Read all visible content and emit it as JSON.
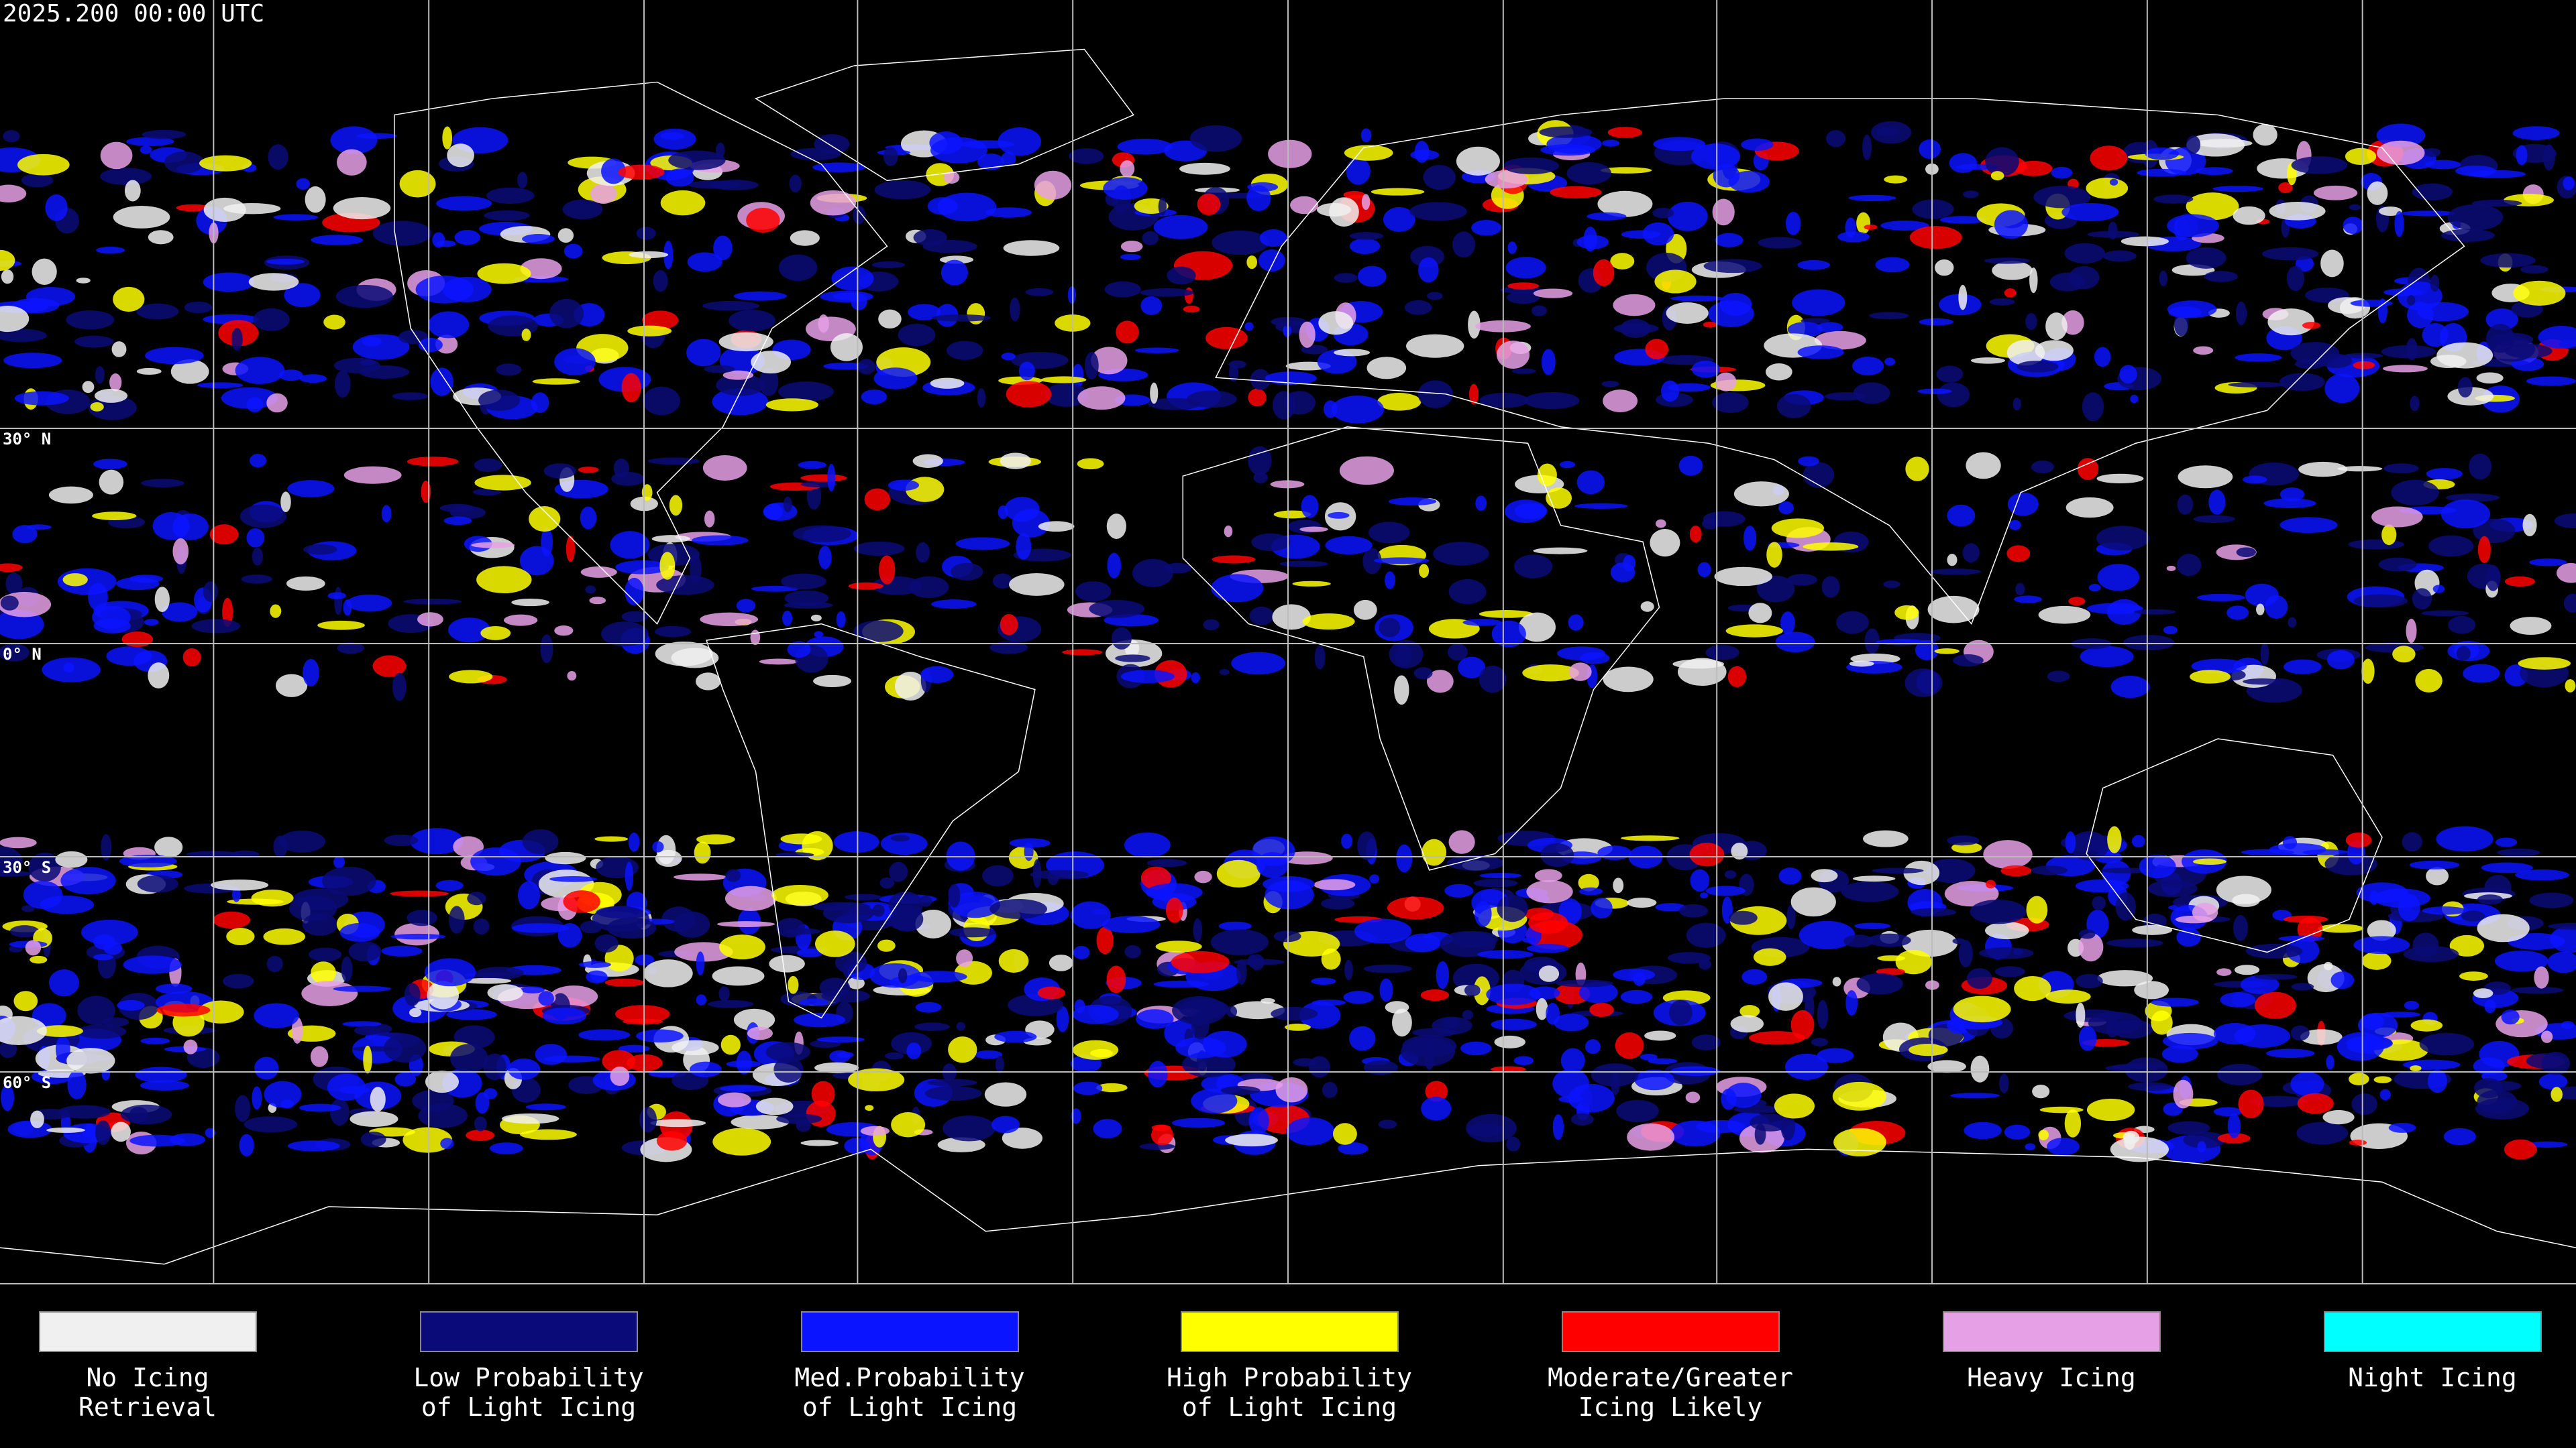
{
  "header": {
    "title": "2025.200 00:00 UTC"
  },
  "grid": {
    "labels": [
      "30° N",
      "0° N",
      "30° S",
      "60° S"
    ]
  },
  "legend": {
    "items": [
      {
        "lines": [
          "No Icing",
          "Retrieval"
        ],
        "color": "#f0f0f0"
      },
      {
        "lines": [
          "Low Probability",
          "of Light Icing"
        ],
        "color": "#0a0a78"
      },
      {
        "lines": [
          "Med.Probability",
          "of Light Icing"
        ],
        "color": "#0a14ff"
      },
      {
        "lines": [
          "High Probability",
          "of Light Icing"
        ],
        "color": "#ffff00"
      },
      {
        "lines": [
          "Moderate/Greater",
          "Icing Likely"
        ],
        "color": "#ff0000"
      },
      {
        "lines": [
          "Heavy Icing"
        ],
        "color": "#e6a0e6"
      },
      {
        "lines": [
          "Night Icing"
        ],
        "color": "#00ffff"
      }
    ]
  }
}
